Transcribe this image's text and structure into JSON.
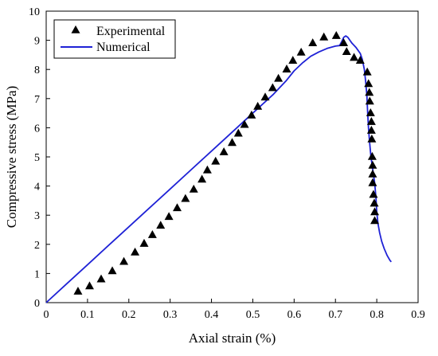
{
  "chart_data": {
    "type": "scatter",
    "title": "",
    "xlabel": "Axial strain (%)",
    "ylabel": "Compressive stress (MPa)",
    "xlim": [
      0,
      0.9
    ],
    "ylim": [
      0,
      10
    ],
    "xticks": [
      "0",
      "0.1",
      "0.2",
      "0.3",
      "0.4",
      "0.5",
      "0.6",
      "0.7",
      "0.8",
      "0.9"
    ],
    "yticks": [
      "0",
      "1",
      "2",
      "3",
      "4",
      "5",
      "6",
      "7",
      "8",
      "9",
      "10"
    ],
    "grid": false,
    "legend_position": "top-left",
    "series": [
      {
        "name": "Experimental",
        "type": "scatter",
        "marker": "triangle",
        "color": "#000000",
        "points": [
          [
            0.077,
            0.38
          ],
          [
            0.105,
            0.56
          ],
          [
            0.133,
            0.8
          ],
          [
            0.16,
            1.08
          ],
          [
            0.188,
            1.4
          ],
          [
            0.215,
            1.72
          ],
          [
            0.237,
            2.02
          ],
          [
            0.257,
            2.32
          ],
          [
            0.277,
            2.64
          ],
          [
            0.297,
            2.94
          ],
          [
            0.317,
            3.24
          ],
          [
            0.337,
            3.56
          ],
          [
            0.357,
            3.88
          ],
          [
            0.377,
            4.22
          ],
          [
            0.39,
            4.54
          ],
          [
            0.41,
            4.84
          ],
          [
            0.43,
            5.16
          ],
          [
            0.45,
            5.48
          ],
          [
            0.465,
            5.8
          ],
          [
            0.48,
            6.1
          ],
          [
            0.497,
            6.42
          ],
          [
            0.512,
            6.72
          ],
          [
            0.53,
            7.04
          ],
          [
            0.548,
            7.36
          ],
          [
            0.562,
            7.68
          ],
          [
            0.582,
            8.0
          ],
          [
            0.597,
            8.3
          ],
          [
            0.617,
            8.58
          ],
          [
            0.645,
            8.9
          ],
          [
            0.672,
            9.1
          ],
          [
            0.702,
            9.15
          ],
          [
            0.72,
            8.9
          ],
          [
            0.727,
            8.6
          ],
          [
            0.745,
            8.4
          ],
          [
            0.76,
            8.3
          ],
          [
            0.777,
            7.9
          ],
          [
            0.78,
            7.5
          ],
          [
            0.782,
            7.2
          ],
          [
            0.783,
            6.9
          ],
          [
            0.785,
            6.5
          ],
          [
            0.787,
            6.2
          ],
          [
            0.787,
            5.9
          ],
          [
            0.788,
            5.6
          ],
          [
            0.789,
            5.0
          ],
          [
            0.79,
            4.7
          ],
          [
            0.79,
            4.4
          ],
          [
            0.79,
            4.1
          ],
          [
            0.792,
            3.7
          ],
          [
            0.794,
            3.4
          ],
          [
            0.795,
            3.1
          ],
          [
            0.795,
            2.8
          ]
        ]
      },
      {
        "name": "Numerical",
        "type": "line",
        "color": "#1f22d6",
        "points": [
          [
            0,
            0
          ],
          [
            0.05,
            0.65
          ],
          [
            0.1,
            1.3
          ],
          [
            0.15,
            1.95
          ],
          [
            0.2,
            2.6
          ],
          [
            0.25,
            3.25
          ],
          [
            0.3,
            3.9
          ],
          [
            0.35,
            4.55
          ],
          [
            0.4,
            5.2
          ],
          [
            0.45,
            5.85
          ],
          [
            0.5,
            6.5
          ],
          [
            0.55,
            7.15
          ],
          [
            0.58,
            7.6
          ],
          [
            0.6,
            7.95
          ],
          [
            0.62,
            8.22
          ],
          [
            0.64,
            8.45
          ],
          [
            0.66,
            8.6
          ],
          [
            0.68,
            8.72
          ],
          [
            0.7,
            8.8
          ],
          [
            0.71,
            8.82
          ],
          [
            0.715,
            8.95
          ],
          [
            0.72,
            9.1
          ],
          [
            0.725,
            9.15
          ],
          [
            0.73,
            9.1
          ],
          [
            0.735,
            9.0
          ],
          [
            0.74,
            8.9
          ],
          [
            0.75,
            8.75
          ],
          [
            0.76,
            8.55
          ],
          [
            0.765,
            8.35
          ],
          [
            0.77,
            8.0
          ],
          [
            0.773,
            7.6
          ],
          [
            0.776,
            7.1
          ],
          [
            0.778,
            6.5
          ],
          [
            0.78,
            6.0
          ],
          [
            0.782,
            5.6
          ],
          [
            0.784,
            5.3
          ],
          [
            0.786,
            5.0
          ],
          [
            0.79,
            4.6
          ],
          [
            0.795,
            4.1
          ],
          [
            0.798,
            3.6
          ],
          [
            0.8,
            3.1
          ],
          [
            0.803,
            2.7
          ],
          [
            0.807,
            2.4
          ],
          [
            0.812,
            2.1
          ],
          [
            0.818,
            1.85
          ],
          [
            0.825,
            1.62
          ],
          [
            0.832,
            1.45
          ],
          [
            0.835,
            1.4
          ]
        ]
      }
    ]
  }
}
